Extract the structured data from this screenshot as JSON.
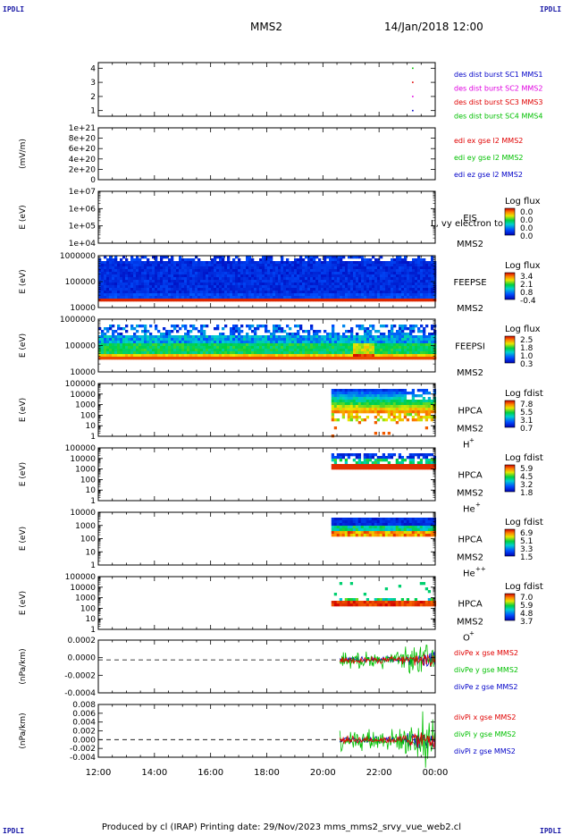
{
  "header": {
    "corner_label": "IPDLI",
    "spacecraft": "MMS2",
    "datetime": "14/Jan/2018 12:00"
  },
  "footer": {
    "text": "Produced by cl (IRAP)   Printing date: 29/Nov/2023   mms_mms2_srvy_vue_web2.cl"
  },
  "colors": {
    "mms1": "#0000c8",
    "mms2": "#e000e0",
    "mms3": "#e00000",
    "mms4": "#00c000",
    "x": "#e00000",
    "y": "#00c000",
    "z": "#0000c8"
  },
  "chart_data": {
    "time_axis": {
      "ticks": [
        "12:00",
        "14:00",
        "16:00",
        "18:00",
        "20:00",
        "22:00",
        "00:00"
      ],
      "range_hours": [
        12,
        24
      ]
    },
    "panels": [
      {
        "id": "burst",
        "type": "scatter",
        "ylabel": "",
        "yticks": [
          "4",
          "3",
          "2",
          "1"
        ],
        "ylim": [
          0.6,
          4.4
        ],
        "legend": [
          {
            "text": "des dist burst SC1 MMS1",
            "color": "mms1"
          },
          {
            "text": "des dist burst SC2 MMS2",
            "color": "mms2"
          },
          {
            "text": "des dist burst SC3 MMS3",
            "color": "mms3"
          },
          {
            "text": "des dist burst SC4 MMS4",
            "color": "mms4"
          }
        ],
        "points": [
          {
            "t": 23.2,
            "y": 4,
            "color": "mms4"
          },
          {
            "t": 23.2,
            "y": 3,
            "color": "mms3"
          },
          {
            "t": 23.2,
            "y": 2,
            "color": "mms2"
          },
          {
            "t": 23.2,
            "y": 1,
            "color": "mms1"
          }
        ]
      },
      {
        "id": "edi",
        "type": "line",
        "ylabel": "(mV/m)",
        "yticks": [
          "1e+21",
          "8e+20",
          "6e+20",
          "4e+20",
          "2e+20",
          "0"
        ],
        "ylim": [
          0,
          1e+21
        ],
        "dashed_zero": true,
        "legend": [
          {
            "text": "edi ex gse l2 MMS2",
            "color": "x"
          },
          {
            "text": "edi ey gse l2 MMS2",
            "color": "y"
          },
          {
            "text": "edi ez gse l2 MMS2",
            "color": "z"
          }
        ]
      },
      {
        "id": "eis",
        "type": "heatmap",
        "ylabel": "E (eV)",
        "yticks": [
          "1e+07",
          "1e+06",
          "1e+05",
          "1e+04"
        ],
        "ylim": [
          10000,
          10000000
        ],
        "log": true,
        "label_lines": [
          "EIS",
          "MMS2"
        ],
        "overlay_text": "L, vy electron to",
        "colorbar": {
          "title": "Log flux",
          "ticks": [
            "0.0",
            "0.0",
            "0.0",
            "0.0"
          ]
        },
        "spectrogram": null
      },
      {
        "id": "feepse",
        "type": "heatmap",
        "ylabel": "E (eV)",
        "yticks": [
          "1000000",
          "100000",
          "10000"
        ],
        "ylim": [
          10000,
          1000000
        ],
        "log": true,
        "label_lines": [
          "FEEPSE",
          "MMS2"
        ],
        "colorbar": {
          "title": "Log flux",
          "ticks": [
            "3.4",
            "2.1",
            "0.8",
            "-0.4"
          ]
        },
        "spectrogram": {
          "t_start": 12,
          "t_end": 24,
          "style": "feeps_e"
        }
      },
      {
        "id": "feepsi",
        "type": "heatmap",
        "ylabel": "E (eV)",
        "yticks": [
          "1000000",
          "100000",
          "10000"
        ],
        "ylim": [
          10000,
          1000000
        ],
        "log": true,
        "label_lines": [
          "FEEPSI",
          "MMS2"
        ],
        "colorbar": {
          "title": "Log flux",
          "ticks": [
            "2.5",
            "1.8",
            "1.0",
            "0.3"
          ]
        },
        "spectrogram": {
          "t_start": 12,
          "t_end": 24,
          "style": "feeps_i"
        }
      },
      {
        "id": "hpca_h",
        "type": "heatmap",
        "ylabel": "E (eV)",
        "yticks": [
          "100000",
          "10000",
          "1000",
          "100",
          "10",
          "1"
        ],
        "ylim": [
          1,
          100000
        ],
        "log": true,
        "label_lines": [
          "HPCA",
          "MMS2"
        ],
        "species": "H",
        "species_sup": "+",
        "colorbar": {
          "title": "Log fdist",
          "ticks": [
            "7.8",
            "5.5",
            "3.1",
            "0.7"
          ]
        },
        "spectrogram": {
          "t_start": 20.3,
          "t_end": 24,
          "style": "hpca_h"
        }
      },
      {
        "id": "hpca_he1",
        "type": "heatmap",
        "ylabel": "E (eV)",
        "yticks": [
          "100000",
          "10000",
          "1000",
          "100",
          "10",
          "1"
        ],
        "ylim": [
          1,
          100000
        ],
        "log": true,
        "label_lines": [
          "HPCA",
          "MMS2"
        ],
        "species": "He",
        "species_sup": "+",
        "colorbar": {
          "title": "Log fdist",
          "ticks": [
            "5.9",
            "4.5",
            "3.2",
            "1.8"
          ]
        },
        "spectrogram": {
          "t_start": 20.3,
          "t_end": 24,
          "style": "hpca_he1"
        }
      },
      {
        "id": "hpca_he2",
        "type": "heatmap",
        "ylabel": "E (eV)",
        "yticks": [
          "10000",
          "1000",
          "100",
          "10",
          "1"
        ],
        "ylim": [
          1,
          10000
        ],
        "log": true,
        "label_lines": [
          "HPCA",
          "MMS2"
        ],
        "species": "He",
        "species_sup": "++",
        "colorbar": {
          "title": "Log fdist",
          "ticks": [
            "6.9",
            "5.1",
            "3.3",
            "1.5"
          ]
        },
        "spectrogram": {
          "t_start": 20.3,
          "t_end": 24,
          "style": "hpca_he2"
        }
      },
      {
        "id": "hpca_o",
        "type": "heatmap",
        "ylabel": "E (eV)",
        "yticks": [
          "100000",
          "10000",
          "1000",
          "100",
          "10",
          "1"
        ],
        "ylim": [
          1,
          100000
        ],
        "log": true,
        "label_lines": [
          "HPCA",
          "MMS2"
        ],
        "species": "O",
        "species_sup": "+",
        "colorbar": {
          "title": "Log fdist",
          "ticks": [
            "7.0",
            "5.9",
            "4.8",
            "3.7"
          ]
        },
        "spectrogram": {
          "t_start": 20.3,
          "t_end": 24,
          "style": "hpca_o"
        }
      },
      {
        "id": "divpe",
        "type": "line",
        "ylabel": "(nPa/km)",
        "yticks": [
          "0.0002",
          "0.0000",
          "-0.0002",
          "-0.0004"
        ],
        "ylim": [
          -0.0005,
          0.0003
        ],
        "dashed_zero": true,
        "legend": [
          {
            "text": "divPe x gse MMS2",
            "color": "x"
          },
          {
            "text": "divPe y gse MMS2",
            "color": "y"
          },
          {
            "text": "divPe z gse MMS2",
            "color": "z"
          }
        ],
        "series_window": [
          20.6,
          24
        ],
        "amplitude": [
          4e-05,
          0.0001
        ]
      },
      {
        "id": "divpi",
        "type": "line",
        "ylabel": "(nPa/km)",
        "yticks": [
          "0.008",
          "0.006",
          "0.004",
          "0.002",
          "0.000",
          "-0.002",
          "-0.004"
        ],
        "ylim": [
          -0.0045,
          0.009
        ],
        "dashed_zero": true,
        "legend": [
          {
            "text": "divPi x gse MMS2",
            "color": "x"
          },
          {
            "text": "divPi y gse MMS2",
            "color": "y"
          },
          {
            "text": "divPi z gse MMS2",
            "color": "z"
          }
        ],
        "series_window": [
          20.6,
          24
        ],
        "amplitude": [
          0.0008,
          0.0022
        ]
      }
    ]
  }
}
